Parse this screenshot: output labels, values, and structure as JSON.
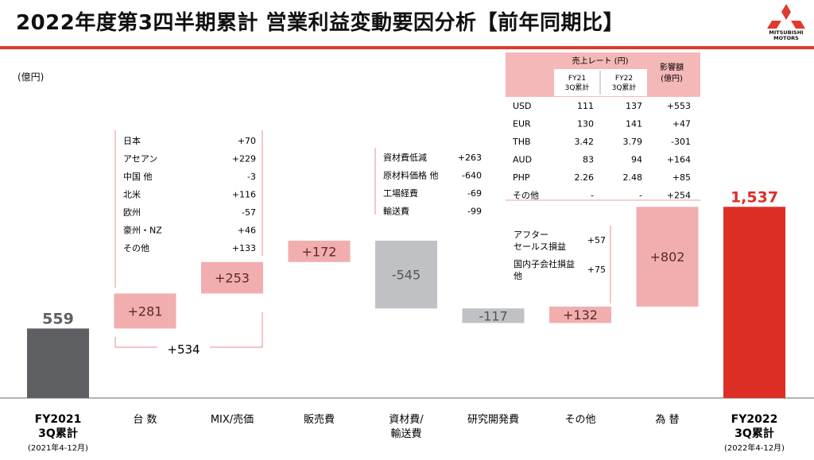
{
  "title": "2022年度第3四半期累計 営業利益変動要因分析【前年同期比】",
  "logo": {
    "name": "MITSUBISHI MOTORS",
    "line1": "MITSUBISHI",
    "line2": "MOTORS"
  },
  "unit": "(億円)",
  "colors": {
    "accent": "#e03a2e",
    "gray_bar": "#5e5f63",
    "pink_bar": "#f2aeae",
    "light_gray_bar": "#bfc1c4",
    "red_bar": "#dd2e26"
  },
  "chart_data": {
    "type": "bar",
    "subtype": "waterfall",
    "categories": [
      {
        "label": "FY2021\n3Q累計",
        "sublabel": "(2021年4-12月)"
      },
      {
        "label": "台 数"
      },
      {
        "label": "MIX/売価"
      },
      {
        "label": "販売費"
      },
      {
        "label": "資材費/\n輸送費"
      },
      {
        "label": "研究開発費"
      },
      {
        "label": "その他"
      },
      {
        "label": "為 替"
      },
      {
        "label": "FY2022\n3Q累計",
        "sublabel": "(2022年4-12月)"
      }
    ],
    "values": [
      559,
      281,
      253,
      172,
      -545,
      -117,
      132,
      802,
      1537
    ],
    "value_labels": [
      "559",
      "+281",
      "+253",
      "+172",
      "-545",
      "-117",
      "+132",
      "+802",
      "1,537"
    ],
    "bar_kinds": [
      "total",
      "increase",
      "increase",
      "increase",
      "decrease",
      "decrease",
      "increase",
      "increase",
      "total"
    ],
    "grid": false,
    "combined_label": "+534",
    "volume_breakdown": [
      {
        "label": "日本",
        "value": "+70"
      },
      {
        "label": "アセアン",
        "value": "+229"
      },
      {
        "label": "中国 他",
        "value": "-3"
      },
      {
        "label": "北米",
        "value": "+116"
      },
      {
        "label": "欧州",
        "value": "-57"
      },
      {
        "label": "豪州・NZ",
        "value": "+46"
      },
      {
        "label": "その他",
        "value": "+133"
      }
    ],
    "material_breakdown": [
      {
        "label": "資材費低減",
        "value": "+263"
      },
      {
        "label": "原材料価格 他",
        "value": "-640"
      },
      {
        "label": "工場経費",
        "value": "-69"
      },
      {
        "label": "輸送費",
        "value": "-99"
      }
    ],
    "other_breakdown": [
      {
        "label": "アフター\nセールス損益",
        "value": "+57"
      },
      {
        "label": "国内子会社損益\n他",
        "value": "+75"
      }
    ],
    "fx_table": {
      "header_rate": "売上レート (円)",
      "header_fy21": "FY21\n3Q累計",
      "header_fy22": "FY22\n3Q累計",
      "header_impact": "影響額\n(億円)",
      "rows": [
        {
          "currency": "USD",
          "fy21": "111",
          "fy22": "137",
          "impact": "+553"
        },
        {
          "currency": "EUR",
          "fy21": "130",
          "fy22": "141",
          "impact": "+47"
        },
        {
          "currency": "THB",
          "fy21": "3.42",
          "fy22": "3.79",
          "impact": "-301"
        },
        {
          "currency": "AUD",
          "fy21": "83",
          "fy22": "94",
          "impact": "+164"
        },
        {
          "currency": "PHP",
          "fy21": "2.26",
          "fy22": "2.48",
          "impact": "+85"
        },
        {
          "currency": "その他",
          "fy21": "-",
          "fy22": "-",
          "impact": "+254"
        }
      ]
    }
  }
}
